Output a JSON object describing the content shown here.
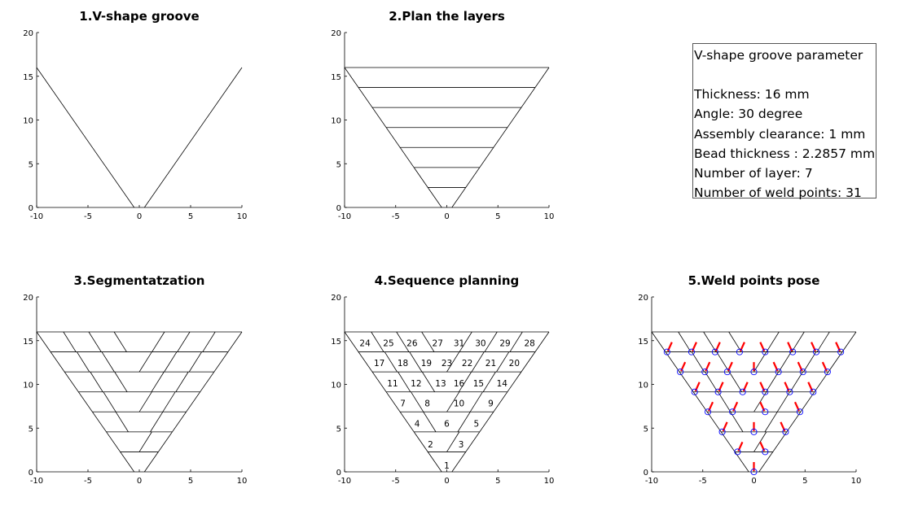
{
  "colors": {
    "line": "#000000",
    "arrow": "#ff0000",
    "marker": "#0000ff"
  },
  "chart_data": [
    {
      "type": "line",
      "title": "1.V-shape groove",
      "xlim": [
        -10,
        10
      ],
      "ylim": [
        0,
        20
      ],
      "xticks": [
        "-10",
        "-5",
        "0",
        "5",
        "10"
      ],
      "yticks": [
        "0",
        "5",
        "10",
        "15",
        "20"
      ],
      "segments": [
        [
          [
            -10,
            16
          ],
          [
            -0.5,
            0
          ]
        ],
        [
          [
            0.5,
            0
          ],
          [
            10,
            16
          ]
        ]
      ]
    },
    {
      "type": "line",
      "title": "2.Plan the layers",
      "xlim": [
        -10,
        10
      ],
      "ylim": [
        0,
        20
      ],
      "xticks": [
        "-10",
        "-5",
        "0",
        "5",
        "10"
      ],
      "yticks": [
        "0",
        "5",
        "10",
        "15",
        "20"
      ],
      "layer_heights": [
        2.2857,
        4.5714,
        6.8571,
        9.1429,
        11.4286,
        13.7143,
        16
      ]
    },
    {
      "type": "line",
      "title": "3.Segmentatzation",
      "xlim": [
        -10,
        10
      ],
      "ylim": [
        0,
        20
      ],
      "xticks": [
        "-10",
        "-5",
        "0",
        "5",
        "10"
      ],
      "yticks": [
        "0",
        "5",
        "10",
        "15",
        "20"
      ],
      "layer_heights": [
        2.2857,
        4.5714,
        6.8571,
        9.1429,
        11.4286,
        13.7143,
        16
      ]
    },
    {
      "type": "line",
      "title": "4.Sequence planning",
      "xlim": [
        -10,
        10
      ],
      "ylim": [
        0,
        20
      ],
      "xticks": [
        "-10",
        "-5",
        "0",
        "5",
        "10"
      ],
      "yticks": [
        "0",
        "5",
        "10",
        "15",
        "20"
      ],
      "labels": [
        {
          "t": "1",
          "x": 0,
          "y": 0.2
        },
        {
          "t": "2",
          "x": -1.6,
          "y": 2.6
        },
        {
          "t": "3",
          "x": 1.4,
          "y": 2.6
        },
        {
          "t": "4",
          "x": -2.9,
          "y": 5.0
        },
        {
          "t": "6",
          "x": 0,
          "y": 5.0
        },
        {
          "t": "5",
          "x": 2.9,
          "y": 5.0
        },
        {
          "t": "7",
          "x": -4.3,
          "y": 7.3
        },
        {
          "t": "8",
          "x": -1.9,
          "y": 7.3
        },
        {
          "t": "10",
          "x": 1.2,
          "y": 7.3
        },
        {
          "t": "9",
          "x": 4.3,
          "y": 7.3
        },
        {
          "t": "11",
          "x": -5.3,
          "y": 9.6
        },
        {
          "t": "12",
          "x": -3.0,
          "y": 9.6
        },
        {
          "t": "13",
          "x": -0.6,
          "y": 9.6
        },
        {
          "t": "16",
          "x": 1.2,
          "y": 9.6
        },
        {
          "t": "15",
          "x": 3.1,
          "y": 9.6
        },
        {
          "t": "14",
          "x": 5.4,
          "y": 9.6
        },
        {
          "t": "17",
          "x": -6.6,
          "y": 11.9
        },
        {
          "t": "18",
          "x": -4.3,
          "y": 11.9
        },
        {
          "t": "19",
          "x": -2.0,
          "y": 11.9
        },
        {
          "t": "23",
          "x": 0,
          "y": 11.9
        },
        {
          "t": "22",
          "x": 2.0,
          "y": 11.9
        },
        {
          "t": "21",
          "x": 4.3,
          "y": 11.9
        },
        {
          "t": "20",
          "x": 6.6,
          "y": 11.9
        },
        {
          "t": "24",
          "x": -8.0,
          "y": 14.2
        },
        {
          "t": "25",
          "x": -5.7,
          "y": 14.2
        },
        {
          "t": "26",
          "x": -3.4,
          "y": 14.2
        },
        {
          "t": "27",
          "x": -0.9,
          "y": 14.2
        },
        {
          "t": "31",
          "x": 1.2,
          "y": 14.2
        },
        {
          "t": "30",
          "x": 3.3,
          "y": 14.2
        },
        {
          "t": "29",
          "x": 5.7,
          "y": 14.2
        },
        {
          "t": "28",
          "x": 8.1,
          "y": 14.2
        }
      ]
    },
    {
      "type": "scatter",
      "title": "5.Weld points pose",
      "xlim": [
        -10,
        10
      ],
      "ylim": [
        0,
        20
      ],
      "xticks": [
        "-10",
        "-5",
        "0",
        "5",
        "10"
      ],
      "yticks": [
        "0",
        "5",
        "10",
        "15",
        "20"
      ],
      "points": [
        [
          0,
          0
        ],
        [
          -1.6,
          2.29
        ],
        [
          1.1,
          2.29
        ],
        [
          -3.1,
          4.57
        ],
        [
          0,
          4.57
        ],
        [
          3.1,
          4.57
        ],
        [
          -4.5,
          6.86
        ],
        [
          -2.1,
          6.86
        ],
        [
          1.1,
          6.86
        ],
        [
          4.5,
          6.86
        ],
        [
          -5.8,
          9.14
        ],
        [
          -3.5,
          9.14
        ],
        [
          -1.1,
          9.14
        ],
        [
          1.1,
          9.14
        ],
        [
          3.5,
          9.14
        ],
        [
          5.8,
          9.14
        ],
        [
          -7.2,
          11.43
        ],
        [
          -4.8,
          11.43
        ],
        [
          -2.6,
          11.43
        ],
        [
          0,
          11.43
        ],
        [
          2.4,
          11.43
        ],
        [
          4.8,
          11.43
        ],
        [
          7.2,
          11.43
        ],
        [
          -8.5,
          13.71
        ],
        [
          -6.1,
          13.71
        ],
        [
          -3.8,
          13.71
        ],
        [
          -1.4,
          13.71
        ],
        [
          1.1,
          13.71
        ],
        [
          3.8,
          13.71
        ],
        [
          6.1,
          13.71
        ],
        [
          8.5,
          13.71
        ]
      ]
    }
  ],
  "info_box": {
    "title": "V-shape groove parameter",
    "thickness": "Thickness: 16 mm",
    "angle": "Angle:  30 degree",
    "clearance": "Assembly clearance: 1 mm",
    "bead": "Bead thickness : 2.2857 mm",
    "layers": "Number of layer: 7",
    "points": "Number of weld points: 31"
  }
}
